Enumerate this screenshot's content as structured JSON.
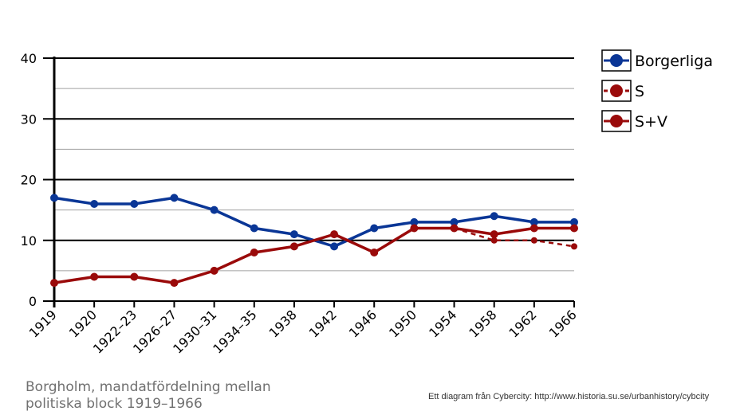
{
  "chart_data": {
    "type": "line",
    "title": "",
    "xlabel": "",
    "ylabel": "",
    "ylim": [
      0,
      40
    ],
    "y_ticks": [
      0,
      10,
      20,
      30,
      40
    ],
    "grid": true,
    "legend_position": "right",
    "categories": [
      "1919",
      "1920",
      "1922–23",
      "1926–27",
      "1930–31",
      "1934–35",
      "1938",
      "1942",
      "1946",
      "1950",
      "1954",
      "1958",
      "1962",
      "1966"
    ],
    "series": [
      {
        "name": "Borgerliga",
        "color": "#0a3696",
        "style": "solid",
        "values": [
          17,
          16,
          16,
          17,
          15,
          12,
          11,
          9,
          12,
          13,
          13,
          14,
          13,
          13
        ]
      },
      {
        "name": "S",
        "color": "#9a0a0a",
        "style": "dashed",
        "values": [
          null,
          null,
          null,
          null,
          null,
          null,
          null,
          null,
          null,
          null,
          12,
          10,
          10,
          9
        ]
      },
      {
        "name": "S+V",
        "color": "#9a0a0a",
        "style": "solid",
        "values": [
          3,
          4,
          4,
          3,
          5,
          8,
          9,
          11,
          8,
          12,
          12,
          11,
          12,
          12
        ]
      }
    ]
  },
  "caption": "Borgholm, mandatfördelning  mellan\npolitiska block 1919–1966",
  "credit": "Ett diagram från Cybercity: http://www.historia.su.se/urbanhistory/cybcity"
}
